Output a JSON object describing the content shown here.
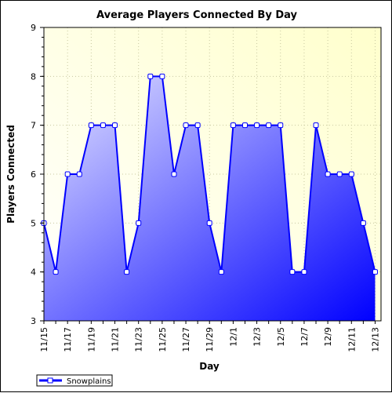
{
  "chart_data": {
    "type": "area",
    "title": "Average Players Connected By Day",
    "xlabel": "Day",
    "ylabel": "Players Connected",
    "ylim": [
      3,
      9
    ],
    "yticks": [
      3,
      4,
      5,
      6,
      7,
      8,
      9
    ],
    "x": [
      "11/15",
      "11/16",
      "11/17",
      "11/18",
      "11/19",
      "11/20",
      "11/21",
      "11/22",
      "11/23",
      "11/24",
      "11/25",
      "11/26",
      "11/27",
      "11/28",
      "11/29",
      "11/30",
      "12/1",
      "12/2",
      "12/3",
      "12/4",
      "12/5",
      "12/6",
      "12/7",
      "12/8",
      "12/9",
      "12/10",
      "12/11",
      "12/12",
      "12/13"
    ],
    "xtick_labels": [
      "11/15",
      "11/17",
      "11/19",
      "11/21",
      "11/23",
      "11/25",
      "11/27",
      "11/29",
      "12/1",
      "12/3",
      "12/5",
      "12/7",
      "12/9",
      "12/11",
      "12/13"
    ],
    "series": [
      {
        "name": "Snowplains",
        "values": [
          5,
          4,
          6,
          6,
          7,
          7,
          7,
          4,
          5,
          8,
          8,
          6,
          7,
          7,
          5,
          4,
          7,
          7,
          7,
          7,
          7,
          4,
          4,
          7,
          6,
          6,
          6,
          5,
          4
        ],
        "color": "#0000ff"
      }
    ],
    "grid": true,
    "legend": "bottom-left",
    "background_gradient": [
      "#ffffff",
      "#ffffcc"
    ]
  }
}
